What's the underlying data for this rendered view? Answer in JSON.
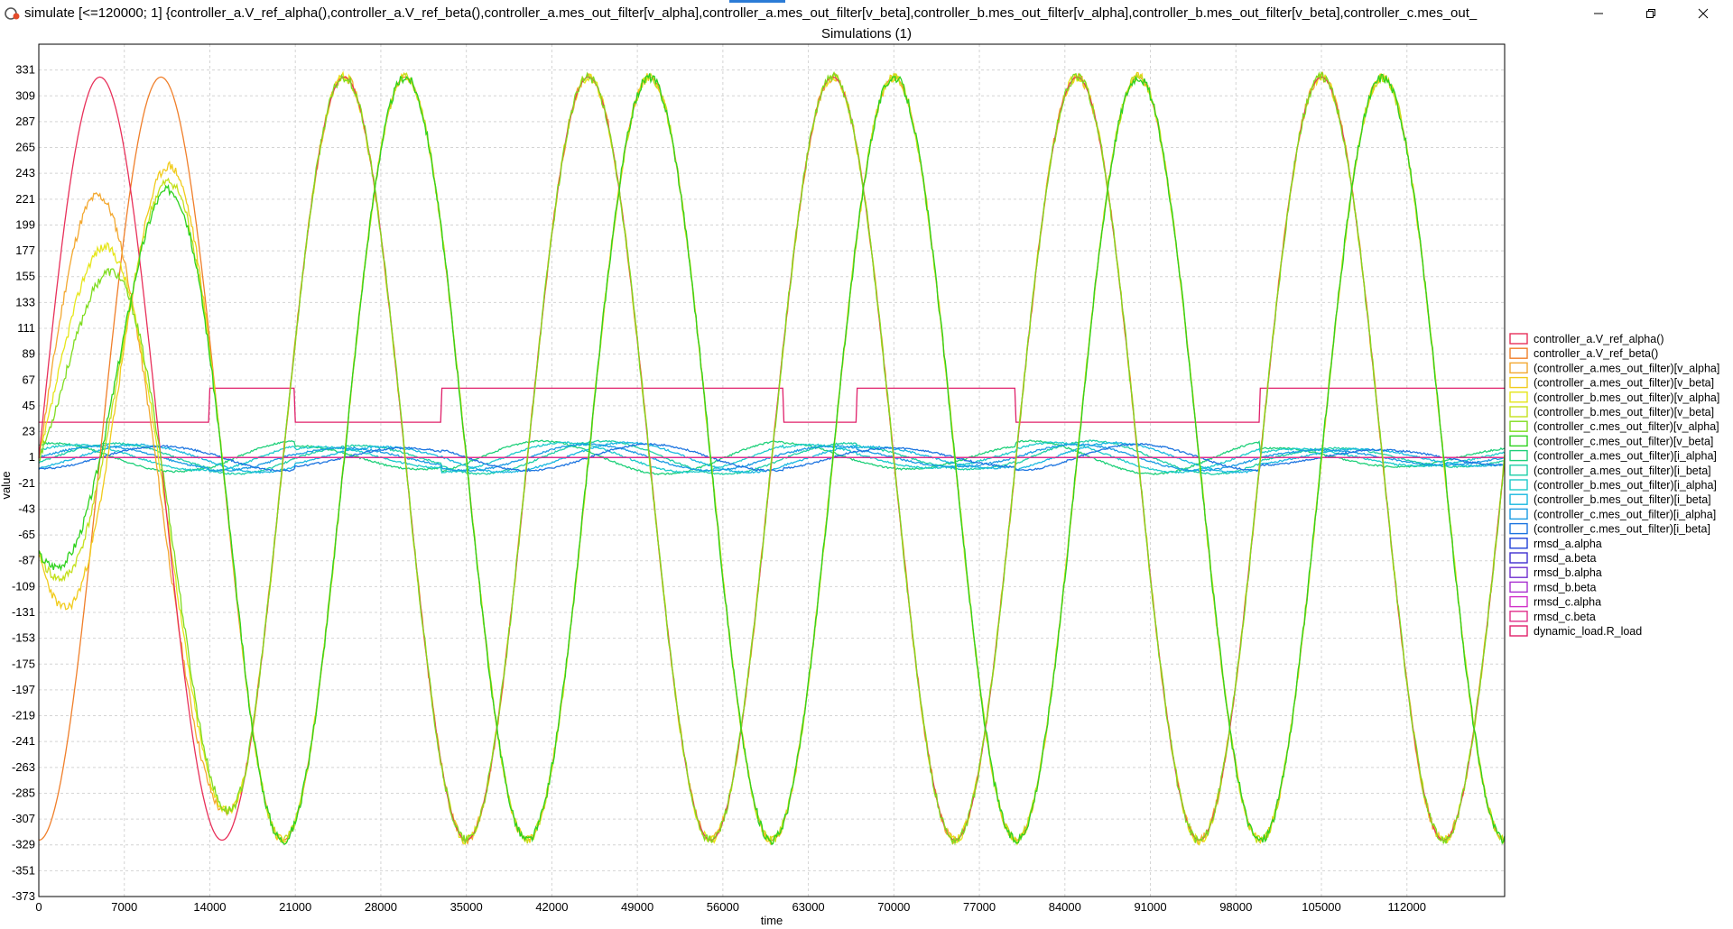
{
  "window": {
    "title": "simulate [<=120000; 1] {controller_a.V_ref_alpha(),controller_a.V_ref_beta(),controller_a.mes_out_filter[v_alpha],controller_a.mes_out_filter[v_beta],controller_b.mes_out_filter[v_alpha],controller_b.mes_out_filter[v_beta],controller_c.mes_out_"
  },
  "chart_data": {
    "type": "line",
    "title": "Simulations (1)",
    "xlabel": "time",
    "ylabel": "value",
    "xlim": [
      0,
      120000
    ],
    "ylim": [
      -373,
      353
    ],
    "x_ticks": [
      0,
      7000,
      14000,
      21000,
      28000,
      35000,
      42000,
      49000,
      56000,
      63000,
      70000,
      77000,
      84000,
      91000,
      98000,
      105000,
      112000
    ],
    "y_ticks": [
      331,
      309,
      287,
      265,
      243,
      221,
      199,
      177,
      155,
      133,
      111,
      89,
      67,
      45,
      23,
      1,
      -21,
      -43,
      -65,
      -87,
      -109,
      -131,
      -153,
      -175,
      -197,
      -219,
      -241,
      -263,
      -285,
      -307,
      -329,
      -351,
      -373
    ],
    "grid": true,
    "legend_position": "right",
    "signal": {
      "amplitude": 325,
      "period": 20000,
      "phase_alpha_deg": 0,
      "phase_beta_deg": -90
    },
    "load_switch_times": [
      14000,
      21000,
      33000,
      61000,
      67000,
      80000,
      100000
    ],
    "load_levels": [
      31,
      60,
      31,
      60,
      31,
      60,
      31,
      60
    ],
    "current_amplitudes": [
      12,
      14,
      10,
      14,
      12,
      10,
      14,
      8
    ],
    "series": [
      {
        "name": "controller_a.V_ref_alpha()",
        "color": "#e8305a",
        "values": []
      },
      {
        "name": "controller_a.V_ref_beta()",
        "color": "#f07f2a",
        "values": []
      },
      {
        "name": "(controller_a.mes_out_filter)[v_alpha]",
        "color": "#f3a830",
        "values": []
      },
      {
        "name": "(controller_a.mes_out_filter)[v_beta]",
        "color": "#f1cb1c",
        "values": []
      },
      {
        "name": "(controller_b.mes_out_filter)[v_alpha]",
        "color": "#e6e61a",
        "values": []
      },
      {
        "name": "(controller_b.mes_out_filter)[v_beta]",
        "color": "#c4e01c",
        "values": []
      },
      {
        "name": "(controller_c.mes_out_filter)[v_alpha]",
        "color": "#7fdc1f",
        "values": []
      },
      {
        "name": "(controller_c.mes_out_filter)[v_beta]",
        "color": "#2ed21e",
        "values": []
      },
      {
        "name": "(controller_a.mes_out_filter)[i_alpha]",
        "color": "#1fd07a",
        "values": []
      },
      {
        "name": "(controller_a.mes_out_filter)[i_beta]",
        "color": "#1ecfa7",
        "values": []
      },
      {
        "name": "(controller_b.mes_out_filter)[i_alpha]",
        "color": "#1ccbcb",
        "values": []
      },
      {
        "name": "(controller_b.mes_out_filter)[i_beta]",
        "color": "#19b8e0",
        "values": []
      },
      {
        "name": "(controller_c.mes_out_filter)[i_alpha]",
        "color": "#1a9be3",
        "values": []
      },
      {
        "name": "(controller_c.mes_out_filter)[i_beta]",
        "color": "#1c74e0",
        "values": []
      },
      {
        "name": "rmsd_a.alpha",
        "color": "#2040d8",
        "values": []
      },
      {
        "name": "rmsd_a.beta",
        "color": "#4030d0",
        "values": []
      },
      {
        "name": "rmsd_b.alpha",
        "color": "#7030d0",
        "values": []
      },
      {
        "name": "rmsd_b.beta",
        "color": "#a830d0",
        "values": []
      },
      {
        "name": "rmsd_c.alpha",
        "color": "#d030c8",
        "values": []
      },
      {
        "name": "rmsd_c.beta",
        "color": "#e0308a",
        "values": []
      },
      {
        "name": "dynamic_load.R_load",
        "color": "#e0206a",
        "values": []
      }
    ]
  }
}
